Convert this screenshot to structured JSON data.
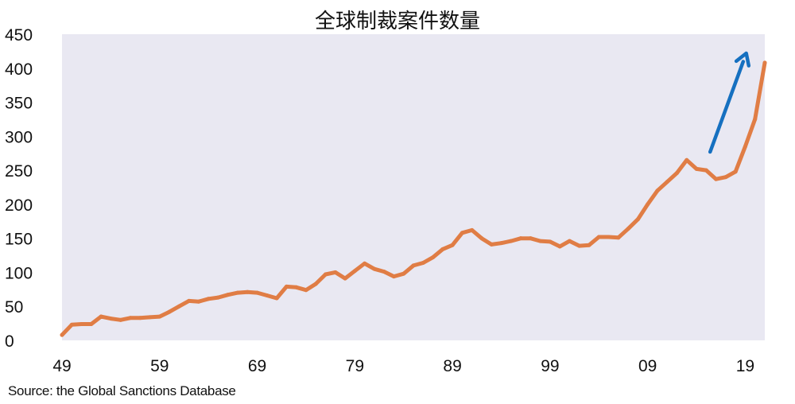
{
  "chart_data": {
    "type": "line",
    "title": "全球制裁案件数量",
    "source": "Source: the Global Sanctions Database",
    "xlabel": "",
    "ylabel": "",
    "xlim": [
      1949,
      2021
    ],
    "ylim": [
      0,
      450
    ],
    "x_ticks": [
      1949,
      1959,
      1969,
      1979,
      1989,
      1999,
      2009,
      2019
    ],
    "x_tick_labels": [
      "49",
      "59",
      "69",
      "79",
      "89",
      "99",
      "09",
      "19"
    ],
    "y_ticks": [
      0,
      50,
      100,
      150,
      200,
      250,
      300,
      350,
      400,
      450
    ],
    "y_tick_labels": [
      "0",
      "50",
      "100",
      "150",
      "200",
      "250",
      "300",
      "350",
      "400",
      "450"
    ],
    "grid": false,
    "background_color": "#e9e8f2",
    "line_color": "#e07d45",
    "arrow_color": "#1670c0",
    "annotation": "upward arrow near 2015-2019",
    "series": [
      {
        "x": [
          1949,
          1950,
          1951,
          1952,
          1953,
          1954,
          1955,
          1956,
          1957,
          1958,
          1959,
          1960,
          1961,
          1962,
          1963,
          1964,
          1965,
          1966,
          1967,
          1968,
          1969,
          1970,
          1971,
          1972,
          1973,
          1974,
          1975,
          1976,
          1977,
          1978,
          1979,
          1980,
          1981,
          1982,
          1983,
          1984,
          1985,
          1986,
          1987,
          1988,
          1989,
          1990,
          1991,
          1992,
          1993,
          1994,
          1995,
          1996,
          1997,
          1998,
          1999,
          2000,
          2001,
          2002,
          2003,
          2004,
          2005,
          2006,
          2007,
          2008,
          2009,
          2010,
          2011,
          2012,
          2013,
          2014,
          2015,
          2016,
          2017,
          2018,
          2019,
          2020,
          2021
        ],
        "values": [
          8,
          23,
          24,
          24,
          35,
          32,
          30,
          33,
          33,
          34,
          35,
          42,
          50,
          58,
          57,
          61,
          63,
          67,
          70,
          71,
          70,
          66,
          62,
          79,
          78,
          74,
          83,
          97,
          100,
          91,
          102,
          113,
          105,
          101,
          94,
          98,
          110,
          114,
          122,
          134,
          140,
          158,
          162,
          150,
          141,
          143,
          146,
          150,
          150,
          146,
          145,
          138,
          146,
          139,
          140,
          152,
          152,
          151,
          164,
          178,
          200,
          220,
          233,
          246,
          265,
          252,
          250,
          237,
          240,
          248,
          285,
          325,
          408
        ]
      }
    ]
  }
}
